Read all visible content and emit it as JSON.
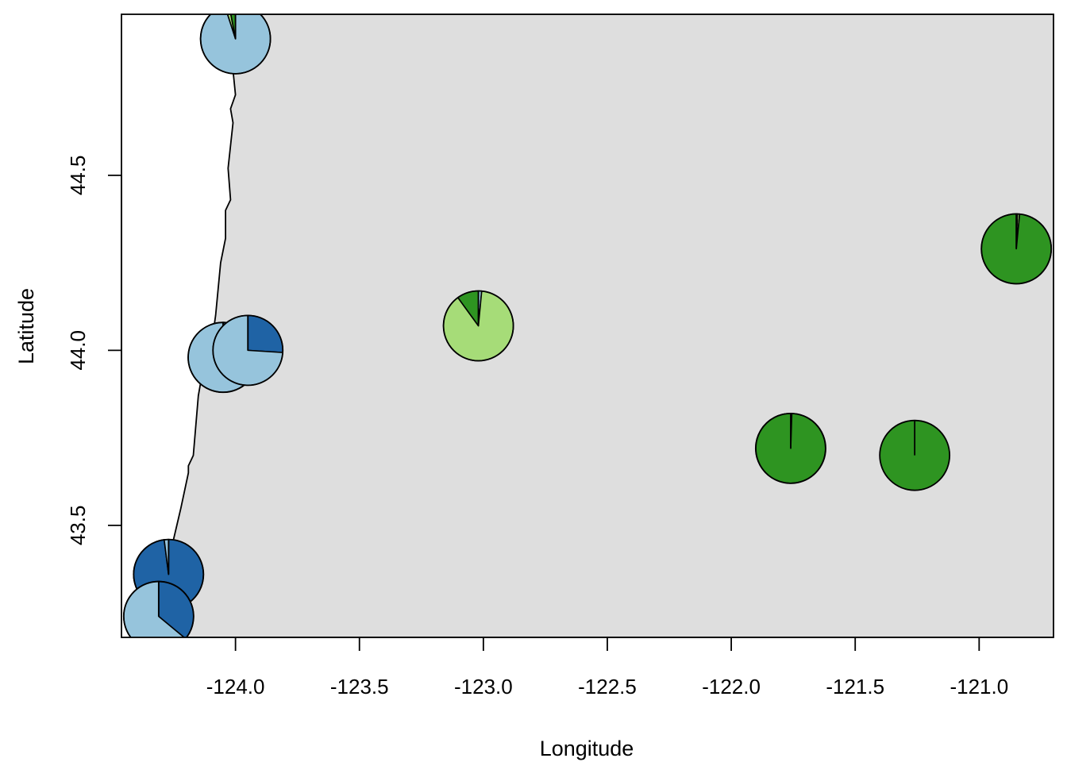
{
  "chart_data": {
    "type": "scatter",
    "subtype": "pie-map",
    "xlabel": "Longitude",
    "ylabel": "Latitude",
    "xlim": [
      -124.46,
      -120.7
    ],
    "ylim": [
      43.18,
      44.96
    ],
    "x_ticks": [
      -124.0,
      -123.5,
      -123.0,
      -122.5,
      -122.0,
      -121.5,
      -121.0
    ],
    "x_tick_labels": [
      "-124.0",
      "-123.5",
      "-123.0",
      "-122.5",
      "-122.0",
      "-121.5",
      "-121.0"
    ],
    "y_ticks": [
      43.5,
      44.0,
      44.5
    ],
    "y_tick_labels": [
      "43.5",
      "44.0",
      "44.5"
    ],
    "grid": false,
    "legend": "none",
    "colors": {
      "land": "#dedede",
      "ocean": "#ffffff",
      "cat1": "#1f63a5",
      "cat2": "#96c4dc",
      "cat3": "#a6dc78",
      "cat4": "#2e9421"
    },
    "coastline": [
      [
        -124.02,
        44.96
      ],
      [
        -124.0,
        44.85
      ],
      [
        -124.01,
        44.8
      ],
      [
        -124.0,
        44.73
      ],
      [
        -124.02,
        44.69
      ],
      [
        -124.01,
        44.65
      ],
      [
        -124.03,
        44.52
      ],
      [
        -124.02,
        44.43
      ],
      [
        -124.04,
        44.4
      ],
      [
        -124.04,
        44.32
      ],
      [
        -124.06,
        44.25
      ],
      [
        -124.08,
        44.1
      ],
      [
        -124.1,
        44.0
      ],
      [
        -124.13,
        43.95
      ],
      [
        -124.15,
        43.87
      ],
      [
        -124.17,
        43.7
      ],
      [
        -124.19,
        43.67
      ],
      [
        -124.19,
        43.65
      ],
      [
        -124.22,
        43.55
      ],
      [
        -124.25,
        43.46
      ],
      [
        -124.28,
        43.38
      ],
      [
        -124.33,
        43.28
      ],
      [
        -124.38,
        43.22
      ],
      [
        -124.41,
        43.18
      ]
    ],
    "pies": [
      {
        "lon": -124.0,
        "lat": 44.89,
        "values": [
          0,
          0.95,
          0.02,
          0.03
        ]
      },
      {
        "lon": -124.05,
        "lat": 43.98,
        "values": [
          0.18,
          0.82,
          0,
          0
        ]
      },
      {
        "lon": -123.95,
        "lat": 44.0,
        "values": [
          0.26,
          0.74,
          0,
          0
        ]
      },
      {
        "lon": -123.02,
        "lat": 44.07,
        "values": [
          0,
          0.015,
          0.885,
          0.1
        ]
      },
      {
        "lon": -124.27,
        "lat": 43.36,
        "values": [
          0.98,
          0.02,
          0,
          0
        ]
      },
      {
        "lon": -124.31,
        "lat": 43.24,
        "values": [
          0.36,
          0.64,
          0,
          0
        ]
      },
      {
        "lon": -121.76,
        "lat": 43.72,
        "values": [
          0,
          0,
          0.005,
          0.995
        ]
      },
      {
        "lon": -121.26,
        "lat": 43.7,
        "values": [
          0,
          0,
          0,
          1.0
        ]
      },
      {
        "lon": -120.85,
        "lat": 44.29,
        "values": [
          0,
          0.005,
          0.01,
          0.985
        ]
      }
    ]
  }
}
